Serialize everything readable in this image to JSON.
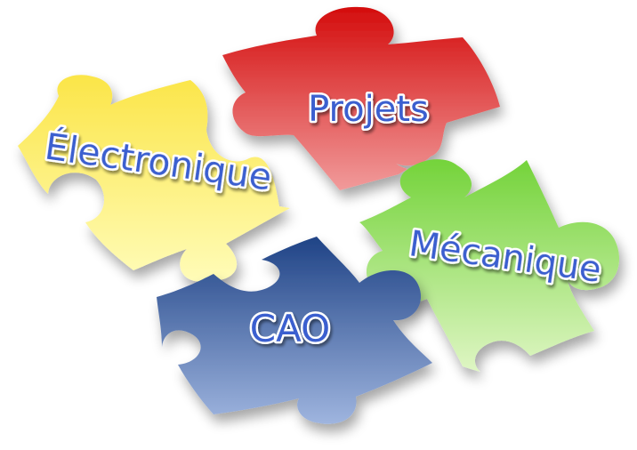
{
  "pieces": {
    "electronique": {
      "label": "Électronique",
      "color_top": "#fbe548",
      "color_bottom": "#fffcb8"
    },
    "projets": {
      "label": "Projets",
      "color_top": "#d40d0d",
      "color_bottom": "#f19b9b"
    },
    "mecanique": {
      "label": "Mécanique",
      "color_top": "#74d33a",
      "color_bottom": "#dff6c4"
    },
    "cao": {
      "label": "CAO",
      "color_top": "#1f4386",
      "color_bottom": "#9fb5df"
    }
  },
  "label_style": {
    "fill": "#3a5fcf",
    "stroke": "#ffffff"
  }
}
